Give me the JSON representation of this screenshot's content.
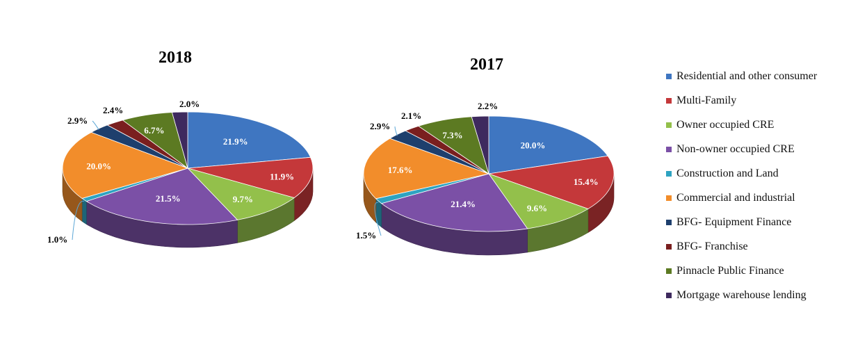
{
  "chart_data": [
    {
      "type": "pie",
      "title": "2018",
      "categories": [
        "Residential and other consumer",
        "Multi-Family",
        "Owner occupied CRE",
        "Non-owner occupied CRE",
        "Construction and Land",
        "Commercial and industrial",
        "BFG- Equipment Finance",
        "BFG- Franchise",
        "Pinnacle Public Finance",
        "Mortgage warehouse lending"
      ],
      "values": [
        21.9,
        11.9,
        9.7,
        21.5,
        1.0,
        20.0,
        2.9,
        2.4,
        6.7,
        2.0
      ],
      "labels": [
        "21.9%",
        "11.9%",
        "9.7%",
        "21.5%",
        "1.0%",
        "20.0%",
        "2.9%",
        "2.4%",
        "6.7%",
        "2.0%"
      ]
    },
    {
      "type": "pie",
      "title": "2017",
      "categories": [
        "Residential and other consumer",
        "Multi-Family",
        "Owner occupied CRE",
        "Non-owner occupied CRE",
        "Construction and Land",
        "Commercial and industrial",
        "BFG- Equipment Finance",
        "BFG- Franchise",
        "Pinnacle Public Finance",
        "Mortgage warehouse lending"
      ],
      "values": [
        20.0,
        15.4,
        9.6,
        21.4,
        1.5,
        17.6,
        2.9,
        2.1,
        7.3,
        2.2
      ],
      "labels": [
        "20.0%",
        "15.4%",
        "9.6%",
        "21.4%",
        "1.5%",
        "17.6%",
        "2.9%",
        "2.1%",
        "7.3%",
        "2.2%"
      ]
    }
  ],
  "legend": {
    "placement": "right",
    "items": [
      {
        "label": "Residential and other consumer",
        "color": "#3F76C1"
      },
      {
        "label": "Multi-Family",
        "color": "#C4383A"
      },
      {
        "label": "Owner occupied CRE",
        "color": "#93C04B"
      },
      {
        "label": "Non-owner occupied CRE",
        "color": "#7B50A6"
      },
      {
        "label": "Construction and Land",
        "color": "#2EA3C1"
      },
      {
        "label": "Commercial and industrial",
        "color": "#F28D2B"
      },
      {
        "label": "BFG- Equipment Finance",
        "color": "#1E3F6D"
      },
      {
        "label": "BFG- Franchise",
        "color": "#7A1F1F"
      },
      {
        "label": "Pinnacle Public Finance",
        "color": "#5C7A22"
      },
      {
        "label": "Mortgage warehouse lending",
        "color": "#3E2A5E"
      }
    ]
  }
}
